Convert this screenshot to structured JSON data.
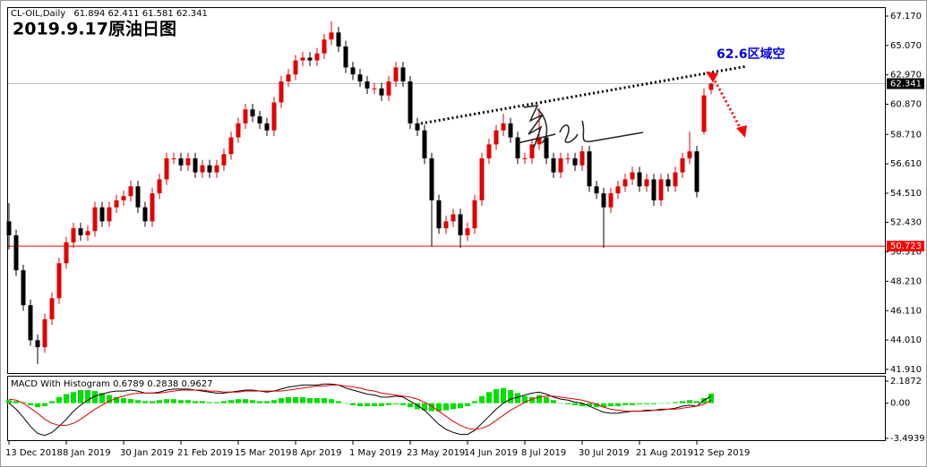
{
  "chart_data": [
    {
      "type": "candlestick",
      "title": "2019.9.17原油日图",
      "symbol": "CL-OIL,Daily",
      "annotation": "62.6区域空",
      "up_color": "#e00000",
      "down_color": "#000000",
      "price_line_color": "#c0c0c0",
      "hline": 50.723,
      "hline_color": "#ff0000",
      "grid": false,
      "ylim": [
        41.65,
        67.81
      ],
      "yticks": [
        {
          "value": 67.17,
          "label": "67.170"
        },
        {
          "value": 65.07,
          "label": "65.070"
        },
        {
          "value": 62.97,
          "label": "62.970"
        },
        {
          "value": 60.87,
          "label": "60.870"
        },
        {
          "value": 58.71,
          "label": "58.710"
        },
        {
          "value": 56.61,
          "label": "56.610"
        },
        {
          "value": 54.51,
          "label": "54.510"
        },
        {
          "value": 52.43,
          "label": "52.430"
        },
        {
          "value": 50.31,
          "label": "50.310"
        },
        {
          "value": 48.21,
          "label": "48.210"
        },
        {
          "value": 46.11,
          "label": "46.110"
        },
        {
          "value": 44.01,
          "label": "44.010"
        },
        {
          "value": 41.91,
          "label": "41.910"
        }
      ],
      "categories": [
        "13 Dec 2018",
        null,
        null,
        null,
        null,
        null,
        null,
        null,
        "8 Jan 2019",
        null,
        null,
        null,
        null,
        null,
        null,
        null,
        "30 Jan 2019",
        null,
        null,
        null,
        null,
        null,
        null,
        null,
        "21 Feb 2019",
        null,
        null,
        null,
        null,
        null,
        null,
        null,
        "15 Mar 2019",
        null,
        null,
        null,
        null,
        null,
        null,
        null,
        "8 Apr 2019",
        null,
        null,
        null,
        null,
        null,
        null,
        null,
        "1 May 2019",
        null,
        null,
        null,
        null,
        null,
        null,
        null,
        "23 May 2019",
        null,
        null,
        null,
        null,
        null,
        null,
        null,
        "14 Jun 2019",
        null,
        null,
        null,
        null,
        null,
        null,
        null,
        "8 Jul 2019",
        null,
        null,
        null,
        null,
        null,
        null,
        null,
        "30 Jul 2019",
        null,
        null,
        null,
        null,
        null,
        null,
        null,
        "21 Aug 2019",
        null,
        null,
        null,
        null,
        null,
        null,
        null,
        "12 Sep 2019",
        null,
        null
      ],
      "open": [
        52.5,
        51.5,
        49.0,
        46.5,
        44.0,
        43.5,
        45.5,
        47.0,
        49.5,
        51.0,
        52.0,
        51.5,
        51.8,
        53.5,
        52.5,
        53.5,
        54.0,
        54.3,
        55.0,
        53.5,
        52.5,
        54.5,
        55.5,
        57.0,
        57.0,
        56.5,
        57.0,
        56.0,
        56.5,
        56.0,
        56.5,
        57.3,
        58.5,
        59.5,
        60.5,
        60.0,
        59.5,
        59.0,
        61.0,
        62.5,
        63.0,
        64.0,
        64.2,
        64.0,
        64.5,
        65.5,
        66.0,
        65.0,
        63.5,
        63.0,
        62.5,
        62.0,
        62.0,
        61.5,
        62.5,
        63.5,
        62.5,
        59.5,
        59.0,
        57.0,
        54.0,
        52.0,
        52.5,
        53.0,
        51.5,
        52.0,
        54.0,
        57.0,
        58.0,
        59.0,
        59.5,
        58.5,
        57.0,
        57.0,
        58.0,
        58.5,
        57.0,
        56.0,
        57.0,
        57.0,
        56.5,
        57.5,
        55.0,
        54.5,
        53.5,
        54.5,
        55.0,
        55.5,
        56.0,
        55.0,
        55.5,
        54.0,
        55.5,
        55.0,
        56.0,
        57.0,
        57.5,
        58.9,
        61.894
      ],
      "high": [
        53.8,
        51.9,
        49.4,
        46.9,
        44.4,
        45.9,
        47.4,
        49.9,
        51.4,
        52.4,
        52.4,
        52.2,
        53.9,
        53.9,
        53.9,
        54.4,
        54.7,
        55.4,
        55.4,
        53.9,
        54.9,
        55.9,
        57.4,
        57.4,
        57.4,
        57.4,
        57.4,
        56.9,
        56.9,
        56.9,
        57.7,
        58.9,
        59.9,
        60.9,
        60.9,
        60.4,
        59.9,
        61.4,
        62.9,
        63.4,
        64.4,
        64.6,
        64.6,
        64.9,
        65.9,
        66.8,
        66.4,
        65.4,
        63.9,
        63.4,
        62.9,
        62.4,
        62.4,
        62.9,
        63.9,
        63.9,
        62.9,
        59.9,
        59.4,
        57.4,
        54.4,
        52.9,
        53.4,
        53.4,
        52.4,
        54.4,
        57.4,
        58.4,
        59.4,
        60.2,
        59.9,
        58.9,
        57.4,
        58.4,
        60.6,
        58.9,
        57.4,
        57.4,
        57.4,
        57.4,
        57.9,
        57.9,
        55.4,
        54.9,
        54.9,
        55.4,
        55.9,
        56.4,
        56.4,
        55.9,
        55.9,
        55.9,
        55.9,
        56.4,
        57.4,
        58.9,
        57.9,
        62.0,
        62.411
      ],
      "low": [
        50.5,
        48.6,
        46.1,
        43.6,
        42.3,
        43.1,
        45.1,
        46.6,
        49.1,
        50.6,
        51.1,
        51.1,
        51.4,
        52.1,
        52.1,
        53.1,
        53.6,
        53.9,
        53.1,
        52.1,
        52.1,
        54.1,
        55.1,
        56.6,
        56.1,
        56.1,
        55.6,
        55.6,
        55.6,
        55.6,
        56.1,
        56.9,
        58.1,
        59.1,
        59.6,
        59.1,
        58.6,
        58.6,
        60.6,
        62.1,
        62.6,
        63.6,
        63.6,
        63.6,
        64.1,
        65.1,
        64.6,
        63.1,
        62.6,
        62.1,
        61.6,
        61.6,
        61.1,
        61.1,
        62.1,
        62.1,
        59.1,
        58.6,
        56.6,
        50.7,
        51.6,
        51.6,
        52.1,
        50.6,
        51.1,
        51.6,
        53.6,
        56.6,
        57.6,
        58.6,
        58.1,
        56.6,
        56.6,
        56.6,
        57.6,
        56.6,
        55.6,
        55.6,
        56.6,
        56.1,
        56.1,
        54.6,
        54.1,
        50.6,
        53.1,
        54.1,
        54.6,
        55.1,
        54.6,
        54.6,
        53.6,
        53.6,
        54.6,
        54.6,
        55.6,
        56.6,
        54.2,
        58.7,
        61.581
      ],
      "close": [
        51.5,
        49.0,
        46.5,
        44.0,
        43.5,
        45.5,
        47.0,
        49.5,
        51.0,
        52.0,
        51.5,
        51.8,
        53.5,
        52.5,
        53.5,
        54.0,
        54.3,
        55.0,
        53.5,
        52.5,
        54.5,
        55.5,
        57.0,
        57.0,
        56.5,
        57.0,
        56.0,
        56.5,
        56.0,
        56.5,
        57.3,
        58.5,
        59.5,
        60.5,
        60.0,
        59.5,
        59.0,
        61.0,
        62.5,
        63.0,
        64.0,
        64.2,
        64.0,
        64.5,
        65.5,
        66.0,
        65.0,
        63.5,
        63.0,
        62.5,
        62.0,
        62.0,
        61.5,
        62.5,
        63.5,
        62.5,
        59.5,
        59.0,
        57.0,
        54.0,
        52.0,
        52.5,
        53.0,
        51.5,
        52.0,
        54.0,
        57.0,
        58.0,
        59.0,
        59.5,
        58.5,
        57.0,
        57.0,
        58.0,
        58.5,
        57.0,
        56.0,
        57.0,
        57.0,
        56.5,
        57.5,
        55.0,
        54.5,
        53.5,
        54.5,
        55.0,
        55.5,
        56.0,
        55.0,
        55.5,
        54.0,
        55.5,
        55.0,
        56.0,
        57.0,
        57.5,
        54.6,
        61.5,
        62.341
      ]
    },
    {
      "type": "macd",
      "title": "MACD With Histogram",
      "ylim": [
        -3.67,
        2.72
      ],
      "yticks": [
        2.1872,
        {
          "value": 0,
          "label": "0.00"
        },
        -3.4939
      ],
      "series": [
        {
          "style": "line",
          "color": "#000000",
          "values": [
            0.0,
            -0.6,
            -1.4,
            -2.3,
            -3.0,
            -3.2,
            -2.9,
            -2.3,
            -1.6,
            -0.8,
            -0.2,
            0.3,
            0.7,
            0.9,
            1.1,
            1.2,
            1.2,
            1.3,
            1.2,
            1.0,
            1.0,
            1.1,
            1.3,
            1.4,
            1.4,
            1.4,
            1.3,
            1.2,
            1.1,
            1.0,
            1.0,
            1.1,
            1.2,
            1.3,
            1.3,
            1.2,
            1.1,
            1.2,
            1.4,
            1.6,
            1.7,
            1.8,
            1.8,
            1.8,
            1.9,
            1.9,
            1.8,
            1.5,
            1.3,
            1.1,
            0.9,
            0.8,
            0.6,
            0.6,
            0.7,
            0.6,
            0.2,
            -0.2,
            -0.7,
            -1.4,
            -2.1,
            -2.6,
            -2.9,
            -3.1,
            -3.1,
            -2.7,
            -2.0,
            -1.3,
            -0.6,
            0.0,
            0.4,
            0.6,
            0.8,
            1.0,
            1.1,
            0.9,
            0.6,
            0.4,
            0.3,
            0.1,
            0.0,
            -0.3,
            -0.6,
            -0.9,
            -1.0,
            -1.0,
            -0.9,
            -0.8,
            -0.8,
            -0.7,
            -0.7,
            -0.6,
            -0.6,
            -0.5,
            -0.3,
            -0.2,
            -0.3,
            0.3,
            0.6789
          ]
        },
        {
          "style": "line",
          "color": "#e00000",
          "values": [
            0.4,
            0.3,
            0.0,
            -0.5,
            -1.0,
            -1.6,
            -2.0,
            -2.2,
            -2.2,
            -2.0,
            -1.6,
            -1.1,
            -0.6,
            -0.2,
            0.2,
            0.5,
            0.7,
            0.9,
            1.0,
            1.0,
            1.0,
            1.0,
            1.1,
            1.2,
            1.3,
            1.3,
            1.3,
            1.3,
            1.2,
            1.2,
            1.1,
            1.1,
            1.1,
            1.2,
            1.2,
            1.2,
            1.2,
            1.2,
            1.2,
            1.3,
            1.4,
            1.5,
            1.6,
            1.7,
            1.7,
            1.8,
            1.8,
            1.7,
            1.6,
            1.5,
            1.3,
            1.2,
            1.0,
            0.9,
            0.8,
            0.7,
            0.6,
            0.4,
            0.1,
            -0.3,
            -0.8,
            -1.3,
            -1.8,
            -2.2,
            -2.5,
            -2.6,
            -2.5,
            -2.2,
            -1.7,
            -1.2,
            -0.7,
            -0.3,
            0.1,
            0.4,
            0.6,
            0.7,
            0.7,
            0.6,
            0.5,
            0.4,
            0.3,
            0.1,
            -0.1,
            -0.4,
            -0.6,
            -0.7,
            -0.8,
            -0.8,
            -0.8,
            -0.8,
            -0.7,
            -0.7,
            -0.6,
            -0.6,
            -0.5,
            -0.4,
            -0.3,
            -0.1,
            0.2838
          ]
        },
        {
          "style": "histogram",
          "color": "#00e000",
          "values": [
            0.3,
            0.2,
            0.1,
            -0.2,
            -0.4,
            -0.3,
            0.2,
            0.6,
            0.9,
            1.1,
            1.3,
            1.3,
            1.2,
            1.0,
            0.8,
            0.6,
            0.5,
            0.4,
            0.3,
            0.2,
            0.2,
            0.3,
            0.4,
            0.4,
            0.3,
            0.3,
            0.2,
            0.2,
            0.1,
            0.1,
            0.2,
            0.3,
            0.4,
            0.4,
            0.3,
            0.2,
            0.2,
            0.3,
            0.5,
            0.6,
            0.6,
            0.6,
            0.5,
            0.5,
            0.5,
            0.4,
            0.2,
            0.0,
            -0.2,
            -0.3,
            -0.3,
            -0.3,
            -0.3,
            -0.2,
            -0.1,
            -0.2,
            -0.4,
            -0.6,
            -0.7,
            -0.8,
            -0.8,
            -0.7,
            -0.6,
            -0.5,
            -0.3,
            0.2,
            0.7,
            1.1,
            1.4,
            1.5,
            1.3,
            1.0,
            0.7,
            0.6,
            0.8,
            0.6,
            0.3,
            0.0,
            -0.1,
            -0.2,
            -0.3,
            -0.3,
            -0.4,
            -0.4,
            -0.3,
            -0.3,
            -0.2,
            -0.2,
            -0.1,
            -0.1,
            -0.1,
            0.0,
            0.0,
            0.1,
            0.2,
            0.3,
            0.2,
            0.5,
            0.9627
          ]
        }
      ]
    }
  ]
}
